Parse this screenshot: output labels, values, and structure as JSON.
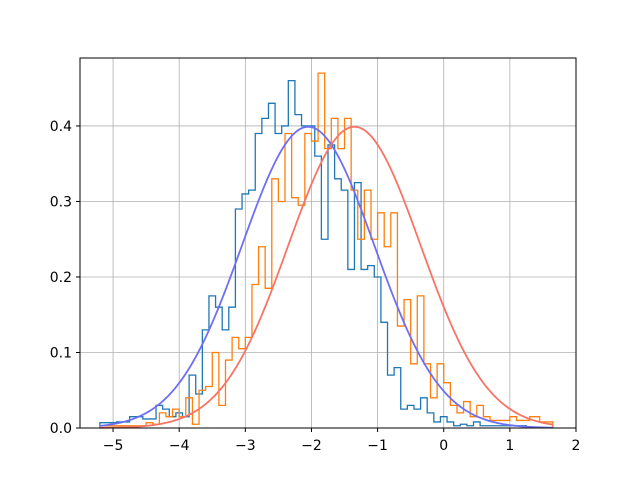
{
  "chart_data": {
    "type": "histogram",
    "title": "",
    "xlabel": "",
    "ylabel": "",
    "xlim": [
      -5.5,
      2.0
    ],
    "ylim": [
      0,
      0.49
    ],
    "grid": true,
    "legend": "none",
    "xticks": [
      -5,
      -4,
      -3,
      -2,
      -1,
      0,
      1,
      2
    ],
    "xtick_labels": [
      "−5",
      "−4",
      "−3",
      "−2",
      "−1",
      "0",
      "1",
      "2"
    ],
    "yticks": [
      0.0,
      0.1,
      0.2,
      0.3,
      0.4
    ],
    "ytick_labels": [
      "0.0",
      "0.1",
      "0.2",
      "0.3",
      "0.4"
    ],
    "series": [
      {
        "kind": "step-histogram",
        "color": "#1f77b4",
        "bin_edges": [
          -5.2,
          -4.95,
          -4.75,
          -4.55,
          -4.35,
          -4.25,
          -4.15,
          -4.05,
          -3.95,
          -3.85,
          -3.75,
          -3.65,
          -3.55,
          -3.45,
          -3.35,
          -3.25,
          -3.15,
          -3.05,
          -2.95,
          -2.85,
          -2.75,
          -2.65,
          -2.55,
          -2.45,
          -2.35,
          -2.25,
          -2.15,
          -2.05,
          -1.95,
          -1.85,
          -1.75,
          -1.65,
          -1.55,
          -1.45,
          -1.35,
          -1.25,
          -1.15,
          -1.05,
          -0.95,
          -0.85,
          -0.75,
          -0.65,
          -0.55,
          -0.45,
          -0.35,
          -0.25,
          -0.15,
          -0.05,
          0.05,
          0.15,
          0.25,
          0.35,
          0.45,
          0.55,
          0.65,
          0.75,
          1.05,
          1.25
        ],
        "values": [
          0.007,
          0.008,
          0.015,
          0.012,
          0.03,
          0.025,
          0.015,
          0.02,
          0.015,
          0.07,
          0.045,
          0.13,
          0.175,
          0.16,
          0.13,
          0.16,
          0.29,
          0.31,
          0.315,
          0.39,
          0.41,
          0.43,
          0.39,
          0.4,
          0.46,
          0.415,
          0.4,
          0.4,
          0.36,
          0.25,
          0.375,
          0.33,
          0.315,
          0.21,
          0.325,
          0.21,
          0.215,
          0.2,
          0.14,
          0.07,
          0.08,
          0.025,
          0.03,
          0.025,
          0.04,
          0.02,
          0.008,
          0.015,
          0.008,
          0.003,
          0.005,
          0.003,
          0.008,
          0.003,
          0.003,
          0.003,
          0.003
        ]
      },
      {
        "kind": "step-histogram",
        "color": "#ff7f0e",
        "bin_edges": [
          -5.2,
          -4.5,
          -4.4,
          -4.3,
          -4.2,
          -4.1,
          -4.0,
          -3.9,
          -3.8,
          -3.7,
          -3.6,
          -3.5,
          -3.4,
          -3.3,
          -3.2,
          -3.1,
          -3.0,
          -2.9,
          -2.8,
          -2.7,
          -2.6,
          -2.5,
          -2.4,
          -2.3,
          -2.2,
          -2.1,
          -2.0,
          -1.9,
          -1.8,
          -1.7,
          -1.6,
          -1.5,
          -1.4,
          -1.3,
          -1.2,
          -1.1,
          -1.0,
          -0.9,
          -0.8,
          -0.7,
          -0.6,
          -0.5,
          -0.4,
          -0.3,
          -0.2,
          -0.1,
          0.0,
          0.1,
          0.2,
          0.3,
          0.4,
          0.5,
          0.6,
          0.7,
          0.8,
          0.9,
          1.0,
          1.1,
          1.2,
          1.3,
          1.45,
          1.65
        ],
        "values": [
          0.003,
          0.007,
          0.005,
          0.02,
          0.015,
          0.025,
          0.015,
          0.04,
          0.005,
          0.05,
          0.055,
          0.1,
          0.03,
          0.09,
          0.12,
          0.105,
          0.12,
          0.19,
          0.24,
          0.185,
          0.33,
          0.3,
          0.39,
          0.305,
          0.295,
          0.39,
          0.38,
          0.47,
          0.37,
          0.41,
          0.37,
          0.41,
          0.315,
          0.25,
          0.315,
          0.25,
          0.285,
          0.24,
          0.285,
          0.135,
          0.17,
          0.085,
          0.175,
          0.085,
          0.04,
          0.085,
          0.06,
          0.03,
          0.02,
          0.035,
          0.015,
          0.03,
          0.015,
          0.01,
          0.01,
          0.01,
          0.015,
          0.01,
          0.01,
          0.015,
          0.008
        ]
      },
      {
        "kind": "normal-pdf-curve",
        "color": "#6f6ff5",
        "mean": -2.05,
        "std": 1.0,
        "x_range": [
          -5.2,
          1.65
        ]
      },
      {
        "kind": "normal-pdf-curve",
        "color": "#f77466",
        "mean": -1.35,
        "std": 1.0,
        "x_range": [
          -5.2,
          1.65
        ]
      }
    ]
  }
}
